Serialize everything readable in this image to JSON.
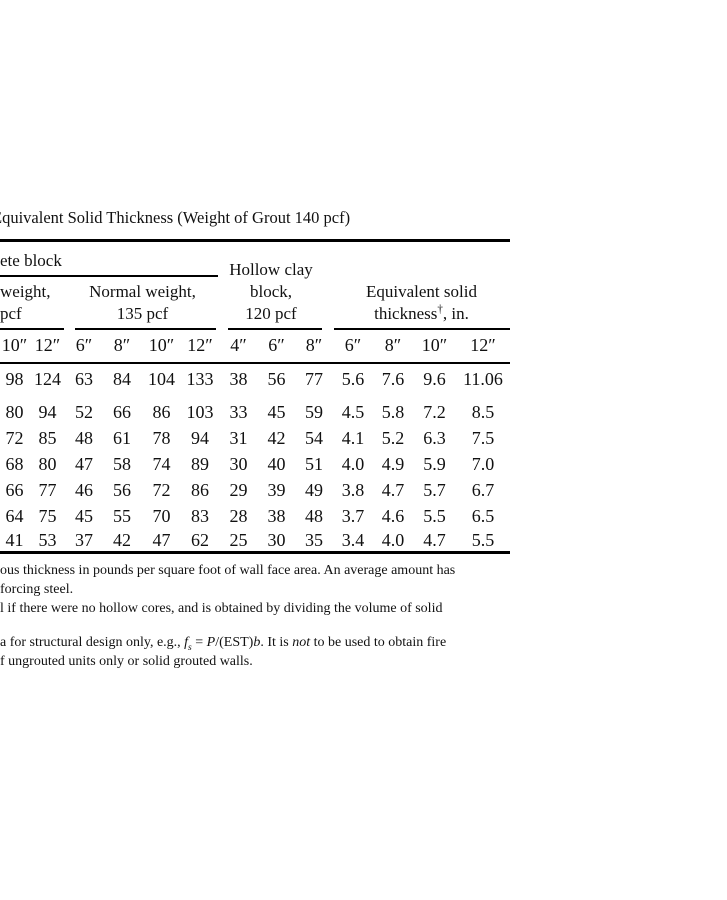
{
  "colors": {
    "background": "#ffffff",
    "text": "#111111",
    "rule": "#000000"
  },
  "page": {
    "title": "Equivalent Solid Thickness (Weight of Grout 140 pcf)"
  },
  "table": {
    "spanner_label": "ete block",
    "groups": [
      {
        "name": "left-cut-group",
        "lines": [
          "weight,",
          "pcf"
        ]
      },
      {
        "name": "normal-weight",
        "lines": [
          "Normal weight,",
          "135 pcf"
        ]
      },
      {
        "name": "hollow-clay-block",
        "lines": [
          "Hollow clay",
          "block,",
          "120 pcf"
        ]
      },
      {
        "name": "equivalent-solid-thickness",
        "lines": [
          "Equivalent solid",
          "thickness†, in."
        ]
      }
    ],
    "columns": [
      "10″",
      "12″",
      "6″",
      "8″",
      "10″",
      "12″",
      "4″",
      "6″",
      "8″",
      "6″",
      "8″",
      "10″",
      "12″"
    ],
    "rows": [
      [
        "98",
        "124",
        "63",
        "84",
        "104",
        "133",
        "38",
        "56",
        "77",
        "5.6",
        "7.6",
        "9.6",
        "11.06"
      ],
      [
        "80",
        "94",
        "52",
        "66",
        "86",
        "103",
        "33",
        "45",
        "59",
        "4.5",
        "5.8",
        "7.2",
        "8.5"
      ],
      [
        "72",
        "85",
        "48",
        "61",
        "78",
        "94",
        "31",
        "42",
        "54",
        "4.1",
        "5.2",
        "6.3",
        "7.5"
      ],
      [
        "68",
        "80",
        "47",
        "58",
        "74",
        "89",
        "30",
        "40",
        "51",
        "4.0",
        "4.9",
        "5.9",
        "7.0"
      ],
      [
        "66",
        "77",
        "46",
        "56",
        "72",
        "86",
        "29",
        "39",
        "49",
        "3.8",
        "4.7",
        "5.7",
        "6.7"
      ],
      [
        "64",
        "75",
        "45",
        "55",
        "70",
        "83",
        "28",
        "38",
        "48",
        "3.7",
        "4.6",
        "5.5",
        "6.5"
      ],
      [
        "41",
        "53",
        "37",
        "42",
        "47",
        "62",
        "25",
        "30",
        "35",
        "3.4",
        "4.0",
        "4.7",
        "5.5"
      ]
    ]
  },
  "footnotes": {
    "block1": [
      "ous thickness in pounds per square foot of wall face area. An average amount has",
      "forcing steel.",
      "l if there were no hollow cores, and is obtained by dividing the volume of solid"
    ],
    "block2": {
      "line1_segments": [
        {
          "text": "a for structural design only, e.g., ",
          "style": "plain"
        },
        {
          "text": "f",
          "style": "italic"
        },
        {
          "text": "s",
          "style": "italic-sub"
        },
        {
          "text": " = ",
          "style": "plain"
        },
        {
          "text": "P",
          "style": "italic"
        },
        {
          "text": "/(EST)",
          "style": "plain"
        },
        {
          "text": "b",
          "style": "italic"
        },
        {
          "text": ". It is ",
          "style": "plain"
        },
        {
          "text": "not",
          "style": "italic"
        },
        {
          "text": " to be used to obtain fire",
          "style": "plain"
        }
      ],
      "line2": "f ungrouted units only or solid grouted walls."
    }
  }
}
